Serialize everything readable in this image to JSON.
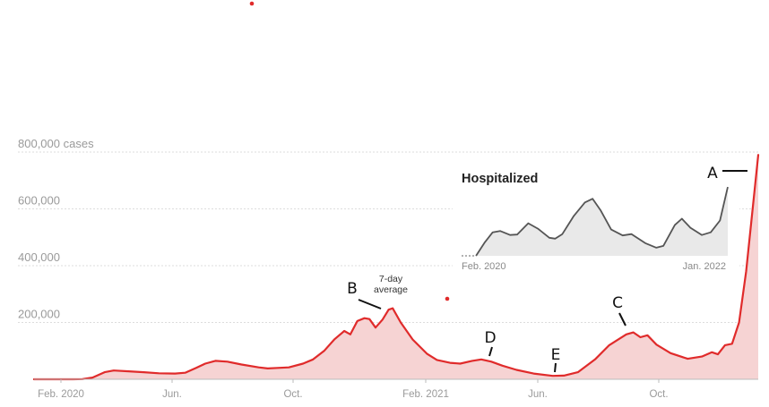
{
  "chart_data": {
    "type": "area",
    "y_unit_label": "800,000 cases",
    "ylim": [
      0,
      800000
    ],
    "y_ticks": [
      {
        "value": 800000,
        "label": "800,000 cases"
      },
      {
        "value": 600000,
        "label": "600,000"
      },
      {
        "value": 400000,
        "label": "400,000"
      },
      {
        "value": 200000,
        "label": "200,000"
      }
    ],
    "x_ticks": [
      "Feb. 2020",
      "Jun.",
      "Oct.",
      "Feb. 2021",
      "Jun.",
      "Oct."
    ],
    "grid": true,
    "colors": {
      "line": "#e02b2b",
      "fill": "#f6d3d3",
      "grid": "#dddddd",
      "inset_line": "#555555",
      "inset_fill": "#e9e9e9"
    },
    "series": [
      {
        "values": [
          [
            "2020-01-22",
            0
          ],
          [
            "2020-03-01",
            0
          ],
          [
            "2020-03-10",
            500
          ],
          [
            "2020-03-20",
            6000
          ],
          [
            "2020-04-01",
            25000
          ],
          [
            "2020-04-10",
            31000
          ],
          [
            "2020-04-25",
            28000
          ],
          [
            "2020-05-10",
            25000
          ],
          [
            "2020-05-25",
            21000
          ],
          [
            "2020-06-10",
            20000
          ],
          [
            "2020-06-20",
            23000
          ],
          [
            "2020-07-01",
            40000
          ],
          [
            "2020-07-10",
            55000
          ],
          [
            "2020-07-20",
            65000
          ],
          [
            "2020-08-01",
            62000
          ],
          [
            "2020-08-15",
            52000
          ],
          [
            "2020-09-01",
            42000
          ],
          [
            "2020-09-10",
            38000
          ],
          [
            "2020-09-20",
            40000
          ],
          [
            "2020-10-01",
            42000
          ],
          [
            "2020-10-15",
            55000
          ],
          [
            "2020-10-25",
            70000
          ],
          [
            "2020-11-05",
            100000
          ],
          [
            "2020-11-15",
            140000
          ],
          [
            "2020-11-25",
            170000
          ],
          [
            "2020-12-01",
            158000
          ],
          [
            "2020-12-08",
            205000
          ],
          [
            "2020-12-15",
            215000
          ],
          [
            "2020-12-20",
            212000
          ],
          [
            "2020-12-26",
            182000
          ],
          [
            "2021-01-02",
            210000
          ],
          [
            "2021-01-08",
            245000
          ],
          [
            "2021-01-12",
            250000
          ],
          [
            "2021-01-20",
            200000
          ],
          [
            "2021-02-01",
            140000
          ],
          [
            "2021-02-15",
            90000
          ],
          [
            "2021-02-25",
            68000
          ],
          [
            "2021-03-10",
            58000
          ],
          [
            "2021-03-20",
            55000
          ],
          [
            "2021-04-01",
            65000
          ],
          [
            "2021-04-10",
            70000
          ],
          [
            "2021-04-20",
            62000
          ],
          [
            "2021-05-01",
            48000
          ],
          [
            "2021-05-15",
            33000
          ],
          [
            "2021-06-01",
            20000
          ],
          [
            "2021-06-20",
            12000
          ],
          [
            "2021-07-01",
            13000
          ],
          [
            "2021-07-15",
            25000
          ],
          [
            "2021-08-01",
            70000
          ],
          [
            "2021-08-15",
            120000
          ],
          [
            "2021-09-01",
            158000
          ],
          [
            "2021-09-08",
            165000
          ],
          [
            "2021-09-15",
            148000
          ],
          [
            "2021-09-22",
            155000
          ],
          [
            "2021-10-01",
            122000
          ],
          [
            "2021-10-15",
            92000
          ],
          [
            "2021-11-01",
            72000
          ],
          [
            "2021-11-15",
            80000
          ],
          [
            "2021-11-25",
            95000
          ],
          [
            "2021-12-01",
            88000
          ],
          [
            "2021-12-08",
            120000
          ],
          [
            "2021-12-15",
            125000
          ],
          [
            "2021-12-22",
            200000
          ],
          [
            "2021-12-29",
            380000
          ],
          [
            "2022-01-05",
            620000
          ],
          [
            "2022-01-10",
            790000
          ]
        ]
      }
    ],
    "annotations": [
      {
        "letter": "A",
        "date": "2022-01-10",
        "value": 790000
      },
      {
        "letter": "B",
        "date": "2021-01-12",
        "value": 250000,
        "note": [
          "7-day",
          "average"
        ]
      },
      {
        "letter": "C",
        "date": "2021-09-08",
        "value": 165000
      },
      {
        "letter": "D",
        "date": "2021-04-10",
        "value": 70000
      },
      {
        "letter": "E",
        "date": "2021-06-20",
        "value": 12000
      }
    ],
    "inset": {
      "title": "Hospitalized",
      "x_ticks": [
        "Feb. 2020",
        "Jan. 2022"
      ],
      "values": [
        [
          "2020-01-22",
          0
        ],
        [
          "2020-03-01",
          0
        ],
        [
          "2020-03-25",
          30
        ],
        [
          "2020-04-15",
          52
        ],
        [
          "2020-05-05",
          55
        ],
        [
          "2020-06-01",
          46
        ],
        [
          "2020-06-20",
          47
        ],
        [
          "2020-07-20",
          72
        ],
        [
          "2020-08-15",
          60
        ],
        [
          "2020-09-15",
          40
        ],
        [
          "2020-10-01",
          38
        ],
        [
          "2020-10-20",
          48
        ],
        [
          "2020-11-20",
          88
        ],
        [
          "2020-12-20",
          118
        ],
        [
          "2021-01-10",
          126
        ],
        [
          "2021-02-01",
          100
        ],
        [
          "2021-03-01",
          58
        ],
        [
          "2021-04-01",
          45
        ],
        [
          "2021-04-25",
          48
        ],
        [
          "2021-06-01",
          28
        ],
        [
          "2021-07-01",
          18
        ],
        [
          "2021-07-20",
          22
        ],
        [
          "2021-08-20",
          68
        ],
        [
          "2021-09-08",
          82
        ],
        [
          "2021-10-01",
          62
        ],
        [
          "2021-11-01",
          46
        ],
        [
          "2021-11-25",
          52
        ],
        [
          "2021-12-20",
          78
        ],
        [
          "2022-01-10",
          152
        ]
      ]
    }
  }
}
